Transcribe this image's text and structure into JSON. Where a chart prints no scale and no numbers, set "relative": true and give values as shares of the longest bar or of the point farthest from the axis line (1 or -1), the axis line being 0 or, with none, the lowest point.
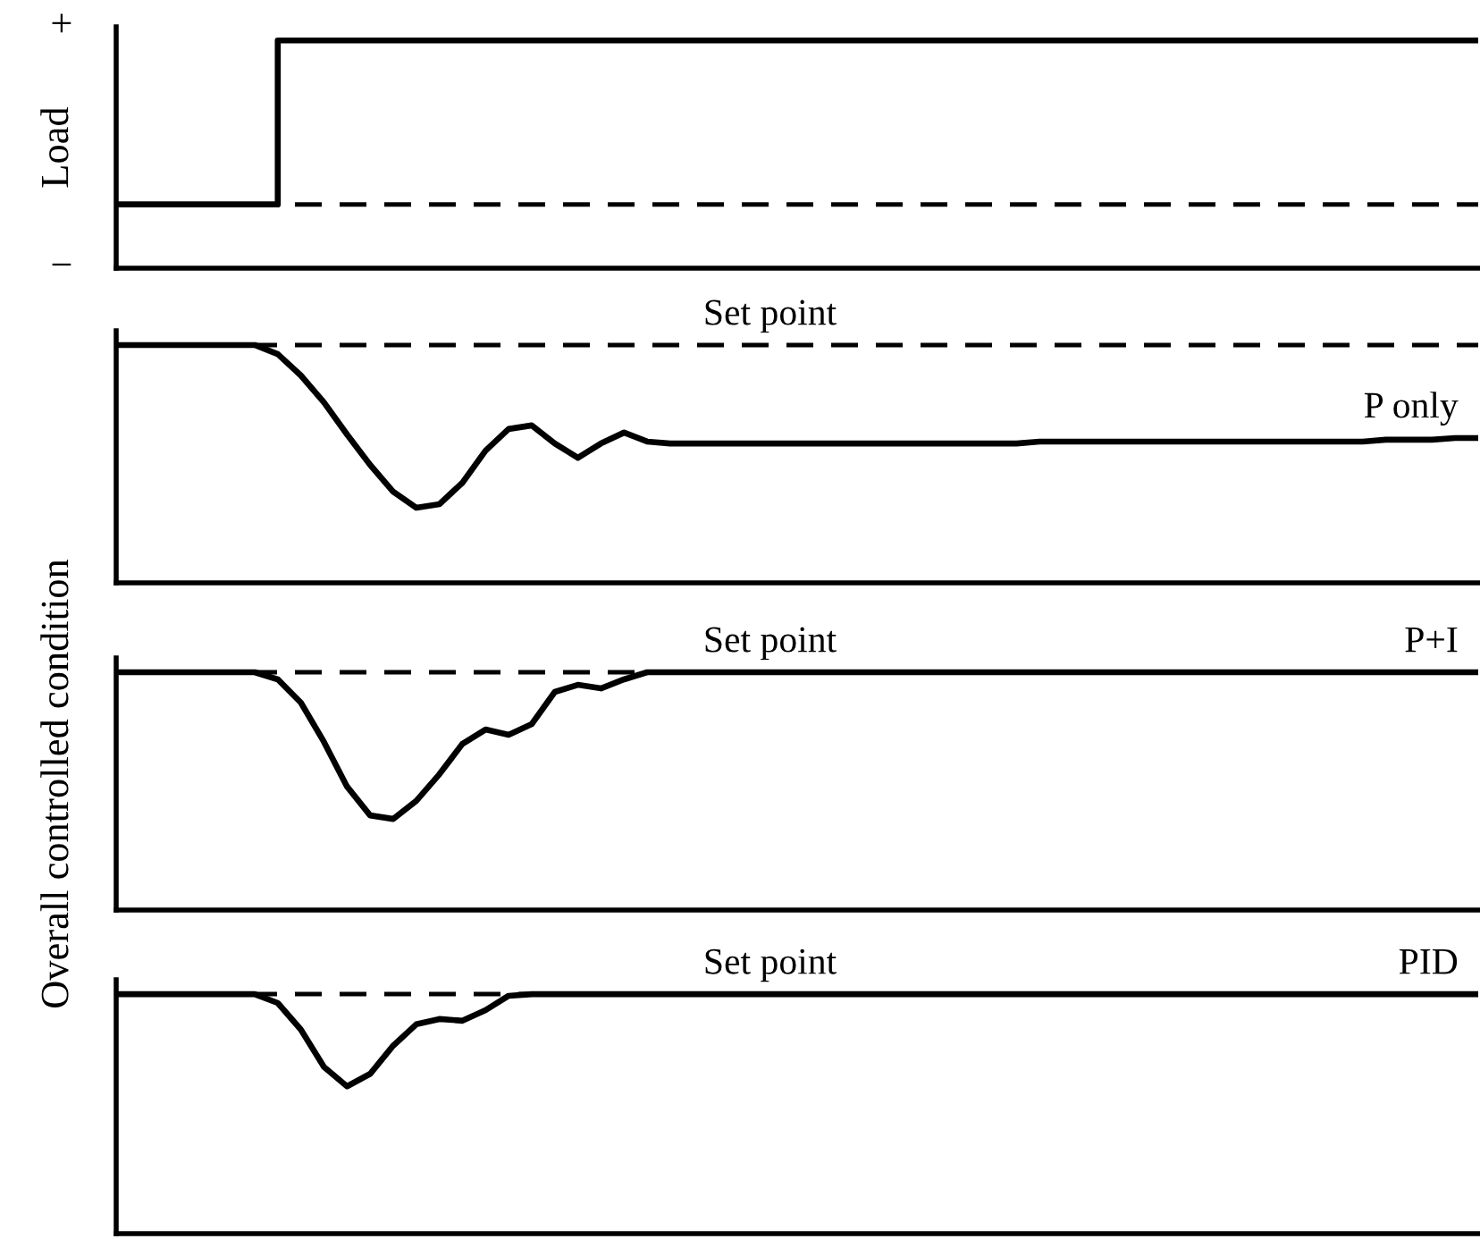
{
  "chart_data": [
    {
      "type": "step",
      "relative": true,
      "ylabel": "Load",
      "annotations": [
        "+",
        "−"
      ],
      "categories": [
        null,
        null,
        null,
        null,
        null,
        null,
        null,
        null,
        null,
        null,
        null,
        null,
        null,
        null,
        null,
        null,
        null,
        null,
        null,
        null,
        null,
        null,
        null,
        null,
        null,
        null,
        null,
        null,
        null,
        null,
        null,
        null,
        null,
        null,
        null,
        null,
        null,
        null,
        null,
        null,
        null,
        null,
        null,
        null,
        null,
        null,
        null,
        null,
        null,
        null,
        null,
        null,
        null,
        null,
        null,
        null,
        null,
        null,
        null,
        null
      ],
      "ref_lines": [
        {
          "axis": "y",
          "value": 0.28,
          "line_style": "dashed",
          "color": "#000000"
        }
      ],
      "series": [
        {
          "color": "#000000",
          "values": [
            0.28,
            0.28,
            0.28,
            0.28,
            0.28,
            0.28,
            0.28,
            1,
            1,
            1,
            1,
            1,
            1,
            1,
            1,
            1,
            1,
            1,
            1,
            1,
            1,
            1,
            1,
            1,
            1,
            1,
            1,
            1,
            1,
            1,
            1,
            1,
            1,
            1,
            1,
            1,
            1,
            1,
            1,
            1,
            1,
            1,
            1,
            1,
            1,
            1,
            1,
            1,
            1,
            1,
            1,
            1,
            1,
            1,
            1,
            1,
            1,
            1,
            1,
            1
          ]
        }
      ]
    },
    {
      "type": "line",
      "relative": true,
      "categories": [
        null,
        null,
        null,
        null,
        null,
        null,
        null,
        null,
        null,
        null,
        null,
        null,
        null,
        null,
        null,
        null,
        null,
        null,
        null,
        null,
        null,
        null,
        null,
        null,
        null,
        null,
        null,
        null,
        null,
        null,
        null,
        null,
        null,
        null,
        null,
        null,
        null,
        null,
        null,
        null,
        null,
        null,
        null,
        null,
        null,
        null,
        null,
        null,
        null,
        null,
        null,
        null,
        null,
        null,
        null,
        null,
        null,
        null,
        null,
        null
      ],
      "ref_lines": [
        {
          "axis": "y",
          "value": 1,
          "label": "Set point",
          "line_style": "dashed",
          "color": "#000000"
        }
      ],
      "series": [
        {
          "name": "P only",
          "color": "#000000",
          "values": [
            1,
            1,
            1,
            1,
            1,
            1,
            1,
            0.962,
            0.872,
            0.759,
            0.624,
            0.496,
            0.383,
            0.316,
            0.331,
            0.421,
            0.556,
            0.647,
            0.662,
            0.586,
            0.526,
            0.586,
            0.632,
            0.594,
            0.586,
            0.586,
            0.586,
            0.586,
            0.586,
            0.586,
            0.586,
            0.586,
            0.586,
            0.586,
            0.586,
            0.586,
            0.586,
            0.586,
            0.586,
            0.586,
            0.594,
            0.594,
            0.594,
            0.594,
            0.594,
            0.594,
            0.594,
            0.594,
            0.594,
            0.594,
            0.594,
            0.594,
            0.594,
            0.594,
            0.594,
            0.602,
            0.602,
            0.602,
            0.609,
            0.609
          ]
        }
      ]
    },
    {
      "type": "line",
      "relative": true,
      "ylabel": "Overall controlled condition",
      "categories": [
        null,
        null,
        null,
        null,
        null,
        null,
        null,
        null,
        null,
        null,
        null,
        null,
        null,
        null,
        null,
        null,
        null,
        null,
        null,
        null,
        null,
        null,
        null,
        null,
        null,
        null,
        null,
        null,
        null,
        null,
        null,
        null,
        null,
        null,
        null,
        null,
        null,
        null,
        null,
        null,
        null,
        null,
        null,
        null,
        null,
        null,
        null,
        null,
        null,
        null,
        null,
        null,
        null,
        null,
        null,
        null,
        null,
        null,
        null,
        null
      ],
      "ref_lines": [
        {
          "axis": "y",
          "value": 1,
          "label": "Set point",
          "line_style": "dashed",
          "color": "#000000"
        }
      ],
      "series": [
        {
          "name": "P+I",
          "color": "#000000",
          "values": [
            1,
            1,
            1,
            1,
            1,
            1,
            1,
            0.97,
            0.872,
            0.707,
            0.519,
            0.398,
            0.383,
            0.459,
            0.571,
            0.699,
            0.759,
            0.737,
            0.782,
            0.917,
            0.947,
            0.932,
            0.97,
            1,
            1,
            1,
            1,
            1,
            1,
            1,
            1,
            1,
            1,
            1,
            1,
            1,
            1,
            1,
            1,
            1,
            1,
            1,
            1,
            1,
            1,
            1,
            1,
            1,
            1,
            1,
            1,
            1,
            1,
            1,
            1,
            1,
            1,
            1,
            1,
            1
          ]
        }
      ]
    },
    {
      "type": "line",
      "relative": true,
      "categories": [
        null,
        null,
        null,
        null,
        null,
        null,
        null,
        null,
        null,
        null,
        null,
        null,
        null,
        null,
        null,
        null,
        null,
        null,
        null,
        null,
        null,
        null,
        null,
        null,
        null,
        null,
        null,
        null,
        null,
        null,
        null,
        null,
        null,
        null,
        null,
        null,
        null,
        null,
        null,
        null,
        null,
        null,
        null,
        null,
        null,
        null,
        null,
        null,
        null,
        null,
        null,
        null,
        null,
        null,
        null,
        null,
        null,
        null,
        null,
        null
      ],
      "ref_lines": [
        {
          "axis": "y",
          "value": 1,
          "label": "Set point",
          "line_style": "dashed",
          "color": "#000000"
        }
      ],
      "series": [
        {
          "name": "PID",
          "color": "#000000",
          "values": [
            1,
            1,
            1,
            1,
            1,
            1,
            1,
            0.963,
            0.852,
            0.696,
            0.615,
            0.667,
            0.785,
            0.874,
            0.896,
            0.889,
            0.933,
            0.993,
            1,
            1,
            1,
            1,
            1,
            1,
            1,
            1,
            1,
            1,
            1,
            1,
            1,
            1,
            1,
            1,
            1,
            1,
            1,
            1,
            1,
            1,
            1,
            1,
            1,
            1,
            1,
            1,
            1,
            1,
            1,
            1,
            1,
            1,
            1,
            1,
            1,
            1,
            1,
            1,
            1,
            1
          ]
        }
      ]
    }
  ]
}
